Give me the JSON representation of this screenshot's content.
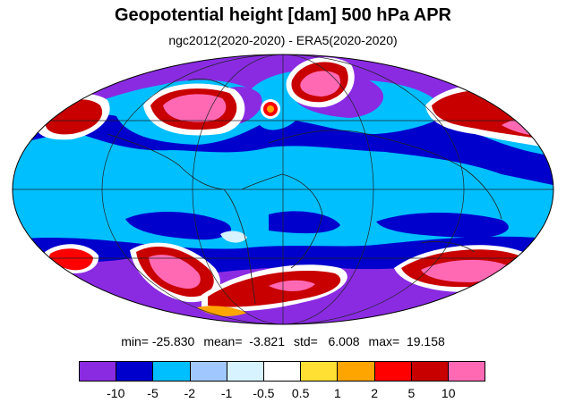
{
  "title": "Geopotential height [dam] 500 hPa APR",
  "subtitle": "ngc2012(2020-2020) - ERA5(2020-2020)",
  "stats": {
    "min": "min= -25.830",
    "mean": "mean=  -3.821",
    "std": "std=   6.008",
    "max": "max=  19.158"
  },
  "colorbar": {
    "colors": [
      "#8a2be2",
      "#0000cd",
      "#00bfff",
      "#a0c8ff",
      "#d6f3ff",
      "#ffffff",
      "#ffe033",
      "#ffa500",
      "#ff0000",
      "#c80000",
      "#ff69b4"
    ],
    "tick_labels": [
      "-10",
      "-5",
      "-2",
      "-1",
      "-0.5",
      "0.5",
      "1",
      "2",
      "5",
      "10"
    ]
  },
  "map": {
    "projection": "Mollweide",
    "background_color": "#00bfff",
    "gridlines": true,
    "coastlines": true
  }
}
